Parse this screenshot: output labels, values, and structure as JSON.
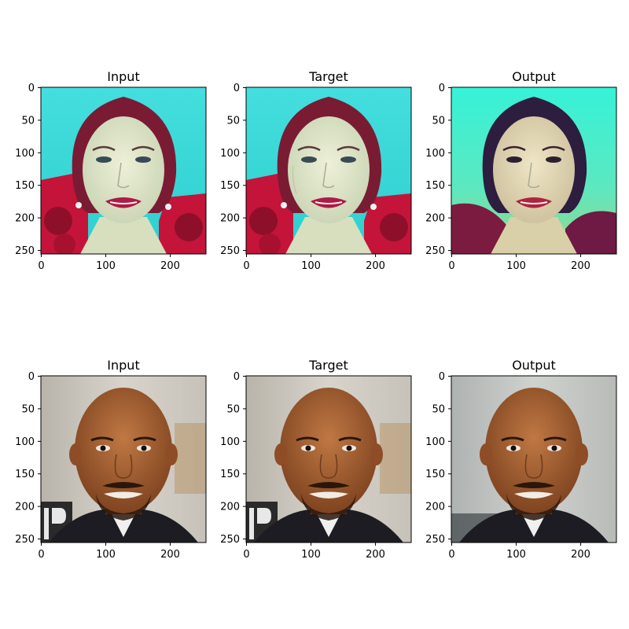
{
  "figure": {
    "rows": [
      {
        "panels": [
          {
            "title": "Input",
            "subject": "woman-portrait",
            "variant": "input"
          },
          {
            "title": "Target",
            "subject": "woman-portrait",
            "variant": "target"
          },
          {
            "title": "Output",
            "subject": "woman-portrait",
            "variant": "output"
          }
        ]
      },
      {
        "panels": [
          {
            "title": "Input",
            "subject": "man-portrait",
            "variant": "input"
          },
          {
            "title": "Target",
            "subject": "man-portrait",
            "variant": "target"
          },
          {
            "title": "Output",
            "subject": "man-portrait",
            "variant": "output"
          }
        ]
      }
    ],
    "x_ticks": [
      "0",
      "100",
      "200"
    ],
    "y_ticks": [
      "0",
      "50",
      "100",
      "150",
      "200",
      "250"
    ]
  },
  "colors": {
    "woman_bg": "#37d6d6",
    "woman_bg_output": "#3ef0cc",
    "woman_hair": "#7a1b34",
    "woman_skin": "#dfe6c8",
    "woman_lips": "#b01a45",
    "woman_flowers": "#c4143a",
    "man_bg": "#c9c5bd",
    "man_skin": "#a25a2f",
    "man_suit": "#1c1c22"
  }
}
